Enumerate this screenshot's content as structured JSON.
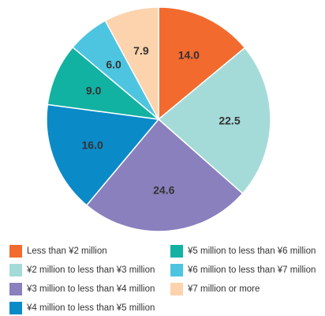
{
  "chart_data": {
    "type": "pie",
    "title": "",
    "slices": [
      {
        "label": "Less than ¥2 million",
        "value": 14.0,
        "display": "14.0",
        "color": "#f26a2e"
      },
      {
        "label": "¥2 million to less than ¥3 million",
        "value": 22.5,
        "display": "22.5",
        "color": "#a4dbd9"
      },
      {
        "label": "¥3 million to less than ¥4 million",
        "value": 24.6,
        "display": "24.6",
        "color": "#8a80bd"
      },
      {
        "label": "¥4 million to less than ¥5 million",
        "value": 16.0,
        "display": "16.0",
        "color": "#0b8ac8"
      },
      {
        "label": "¥5 million to less than ¥6 million",
        "value": 9.0,
        "display": "9.0",
        "color": "#12b2a2"
      },
      {
        "label": "¥6 million to less than ¥7 million",
        "value": 6.0,
        "display": "6.0",
        "color": "#4dc5e0"
      },
      {
        "label": "¥7 million or more",
        "value": 7.9,
        "display": "7.9",
        "color": "#fcd3ac"
      }
    ]
  }
}
